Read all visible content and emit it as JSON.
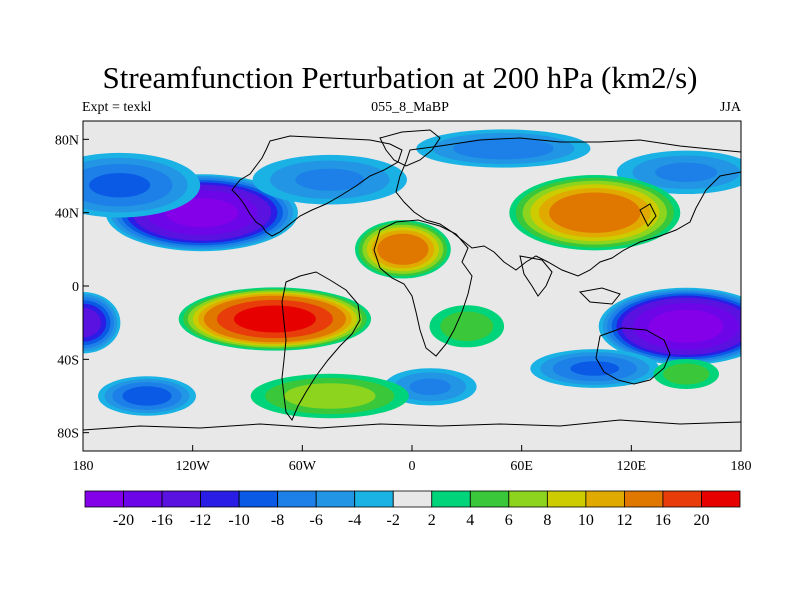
{
  "title": "Streamfunction Perturbation at 200 hPa (km2/s)",
  "left_label": "Expt = texkl",
  "center_label": "055_8_MaBP",
  "right_label": "JJA",
  "x_ticks": [
    {
      "lon": -180,
      "label": "180"
    },
    {
      "lon": -120,
      "label": "120W"
    },
    {
      "lon": -60,
      "label": "60W"
    },
    {
      "lon": 0,
      "label": "0"
    },
    {
      "lon": 60,
      "label": "60E"
    },
    {
      "lon": 120,
      "label": "120E"
    },
    {
      "lon": 180,
      "label": "180"
    }
  ],
  "y_ticks": [
    {
      "lat": 80,
      "label": "80N"
    },
    {
      "lat": 40,
      "label": "40N"
    },
    {
      "lat": 0,
      "label": "0"
    },
    {
      "lat": -40,
      "label": "40S"
    },
    {
      "lat": -80,
      "label": "80S"
    }
  ],
  "colorbar": {
    "colors": [
      "#8400e8",
      "#6c06e8",
      "#5a12e0",
      "#2a1ee6",
      "#0a5ae6",
      "#1c80e8",
      "#2296e4",
      "#1ab2e4",
      "#e8e8e8",
      "#00d47a",
      "#3ac83a",
      "#8cd41e",
      "#cccc00",
      "#e0aa00",
      "#e07800",
      "#e83c0a",
      "#e60000"
    ],
    "labels": [
      "-20",
      "-16",
      "-12",
      "-10",
      "-8",
      "-6",
      "-4",
      "-2",
      "2",
      "4",
      "6",
      "8",
      "10",
      "12",
      "16",
      "20"
    ]
  },
  "chart_data": {
    "type": "heatmap",
    "title": "Streamfunction Perturbation at 200 hPa (km2/s)",
    "xlabel": "",
    "ylabel": "",
    "xlim": [
      -180,
      180
    ],
    "ylim": [
      -90,
      90
    ],
    "units": "km2/s",
    "levels": [
      -20,
      -16,
      -12,
      -10,
      -8,
      -6,
      -4,
      -2,
      2,
      4,
      6,
      8,
      10,
      12,
      16,
      20
    ],
    "features": [
      {
        "lon": -115,
        "lat": 40,
        "value": -22,
        "rx": 55,
        "ry": 22
      },
      {
        "lon": -160,
        "lat": 55,
        "value": -8,
        "rx": 50,
        "ry": 20
      },
      {
        "lon": -45,
        "lat": 58,
        "value": -6,
        "rx": 50,
        "ry": 16
      },
      {
        "lon": 50,
        "lat": 75,
        "value": -7,
        "rx": 55,
        "ry": 12
      },
      {
        "lon": 150,
        "lat": 62,
        "value": -6,
        "rx": 45,
        "ry": 14
      },
      {
        "lon": -180,
        "lat": -20,
        "value": -14,
        "rx": 22,
        "ry": 18
      },
      {
        "lon": 150,
        "lat": -22,
        "value": -23,
        "rx": 50,
        "ry": 22
      },
      {
        "lon": 100,
        "lat": -45,
        "value": -8,
        "rx": 40,
        "ry": 12
      },
      {
        "lon": -145,
        "lat": -60,
        "value": -9,
        "rx": 30,
        "ry": 12
      },
      {
        "lon": 10,
        "lat": -55,
        "value": -6,
        "rx": 30,
        "ry": 12
      },
      {
        "lon": -75,
        "lat": -18,
        "value": 23,
        "rx": 55,
        "ry": 18
      },
      {
        "lon": -5,
        "lat": 20,
        "value": 15,
        "rx": 28,
        "ry": 17
      },
      {
        "lon": 100,
        "lat": 40,
        "value": 15,
        "rx": 50,
        "ry": 22
      },
      {
        "lon": -45,
        "lat": -60,
        "value": 7,
        "rx": 50,
        "ry": 14
      },
      {
        "lon": 150,
        "lat": -48,
        "value": 5,
        "rx": 22,
        "ry": 10
      },
      {
        "lon": 30,
        "lat": -22,
        "value": 5,
        "rx": 25,
        "ry": 14
      }
    ]
  }
}
